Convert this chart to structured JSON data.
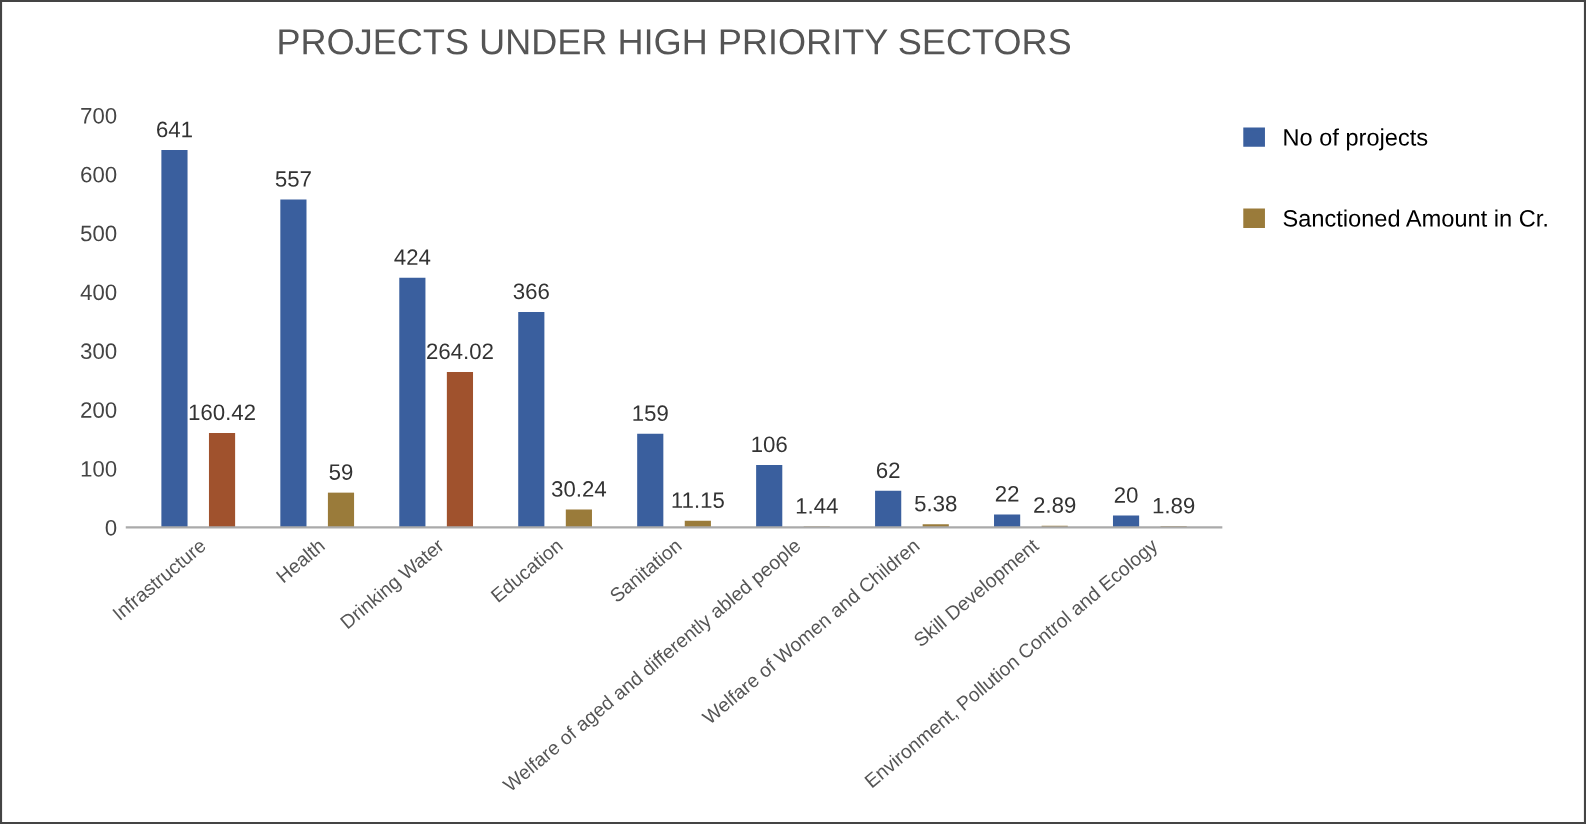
{
  "chart_data": {
    "type": "bar",
    "title": "PROJECTS UNDER HIGH PRIORITY SECTORS",
    "categories": [
      "Infrastructure",
      "Health",
      "Drinking Water",
      "Education",
      "Sanitation",
      "Welfare of aged and differently abled people",
      "Welfare of Women and Children",
      "Skill Development",
      "Environment, Pollution Control and Ecology"
    ],
    "series": [
      {
        "name": "No of projects",
        "color": "#3a5f9e",
        "values": [
          641,
          557,
          424,
          366,
          159,
          106,
          62,
          22,
          20
        ]
      },
      {
        "name": "Sanctioned Amount in Cr.",
        "color": "#9a7b3a",
        "colors": [
          "#a0522d",
          "#9a7b3a",
          "#a0522d",
          "#9a7b3a",
          "#9a7b3a",
          "#9a7b3a",
          "#9a7b3a",
          "#9a7b3a",
          "#9a7b3a"
        ],
        "values": [
          160.42,
          59,
          264.02,
          30.24,
          11.15,
          1.44,
          5.38,
          2.89,
          1.89
        ]
      }
    ],
    "ylim": [
      0,
      700
    ],
    "yticks": [
      0,
      100,
      200,
      300,
      400,
      500,
      600,
      700
    ],
    "grid": false,
    "legend": "top right",
    "data_labels": true
  }
}
